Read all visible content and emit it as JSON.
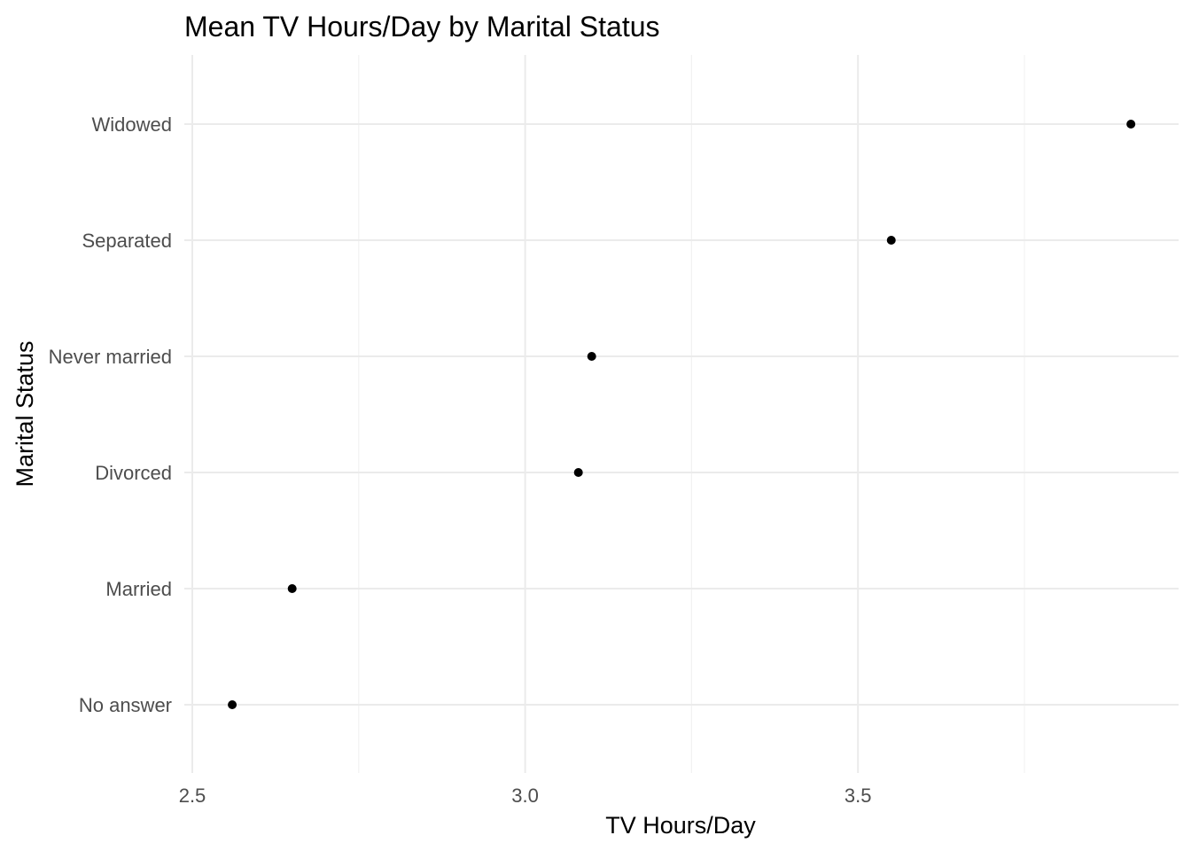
{
  "chart_data": {
    "type": "scatter",
    "title": "Mean TV Hours/Day by Marital Status",
    "xlabel": "TV Hours/Day",
    "ylabel": "Marital Status",
    "xlim": [
      2.5,
      3.93
    ],
    "x_ticks": [
      "2.5",
      "3.0",
      "3.5"
    ],
    "x_tick_values": [
      2.5,
      3.0,
      3.5
    ],
    "x_minor_ticks": [
      2.75,
      3.25,
      3.75
    ],
    "grid": true,
    "legend": "none",
    "point_color": "#000000",
    "categories": [
      "No answer",
      "Married",
      "Divorced",
      "Never married",
      "Separated",
      "Widowed"
    ],
    "values": [
      2.56,
      2.65,
      3.08,
      3.1,
      3.55,
      3.91
    ]
  }
}
